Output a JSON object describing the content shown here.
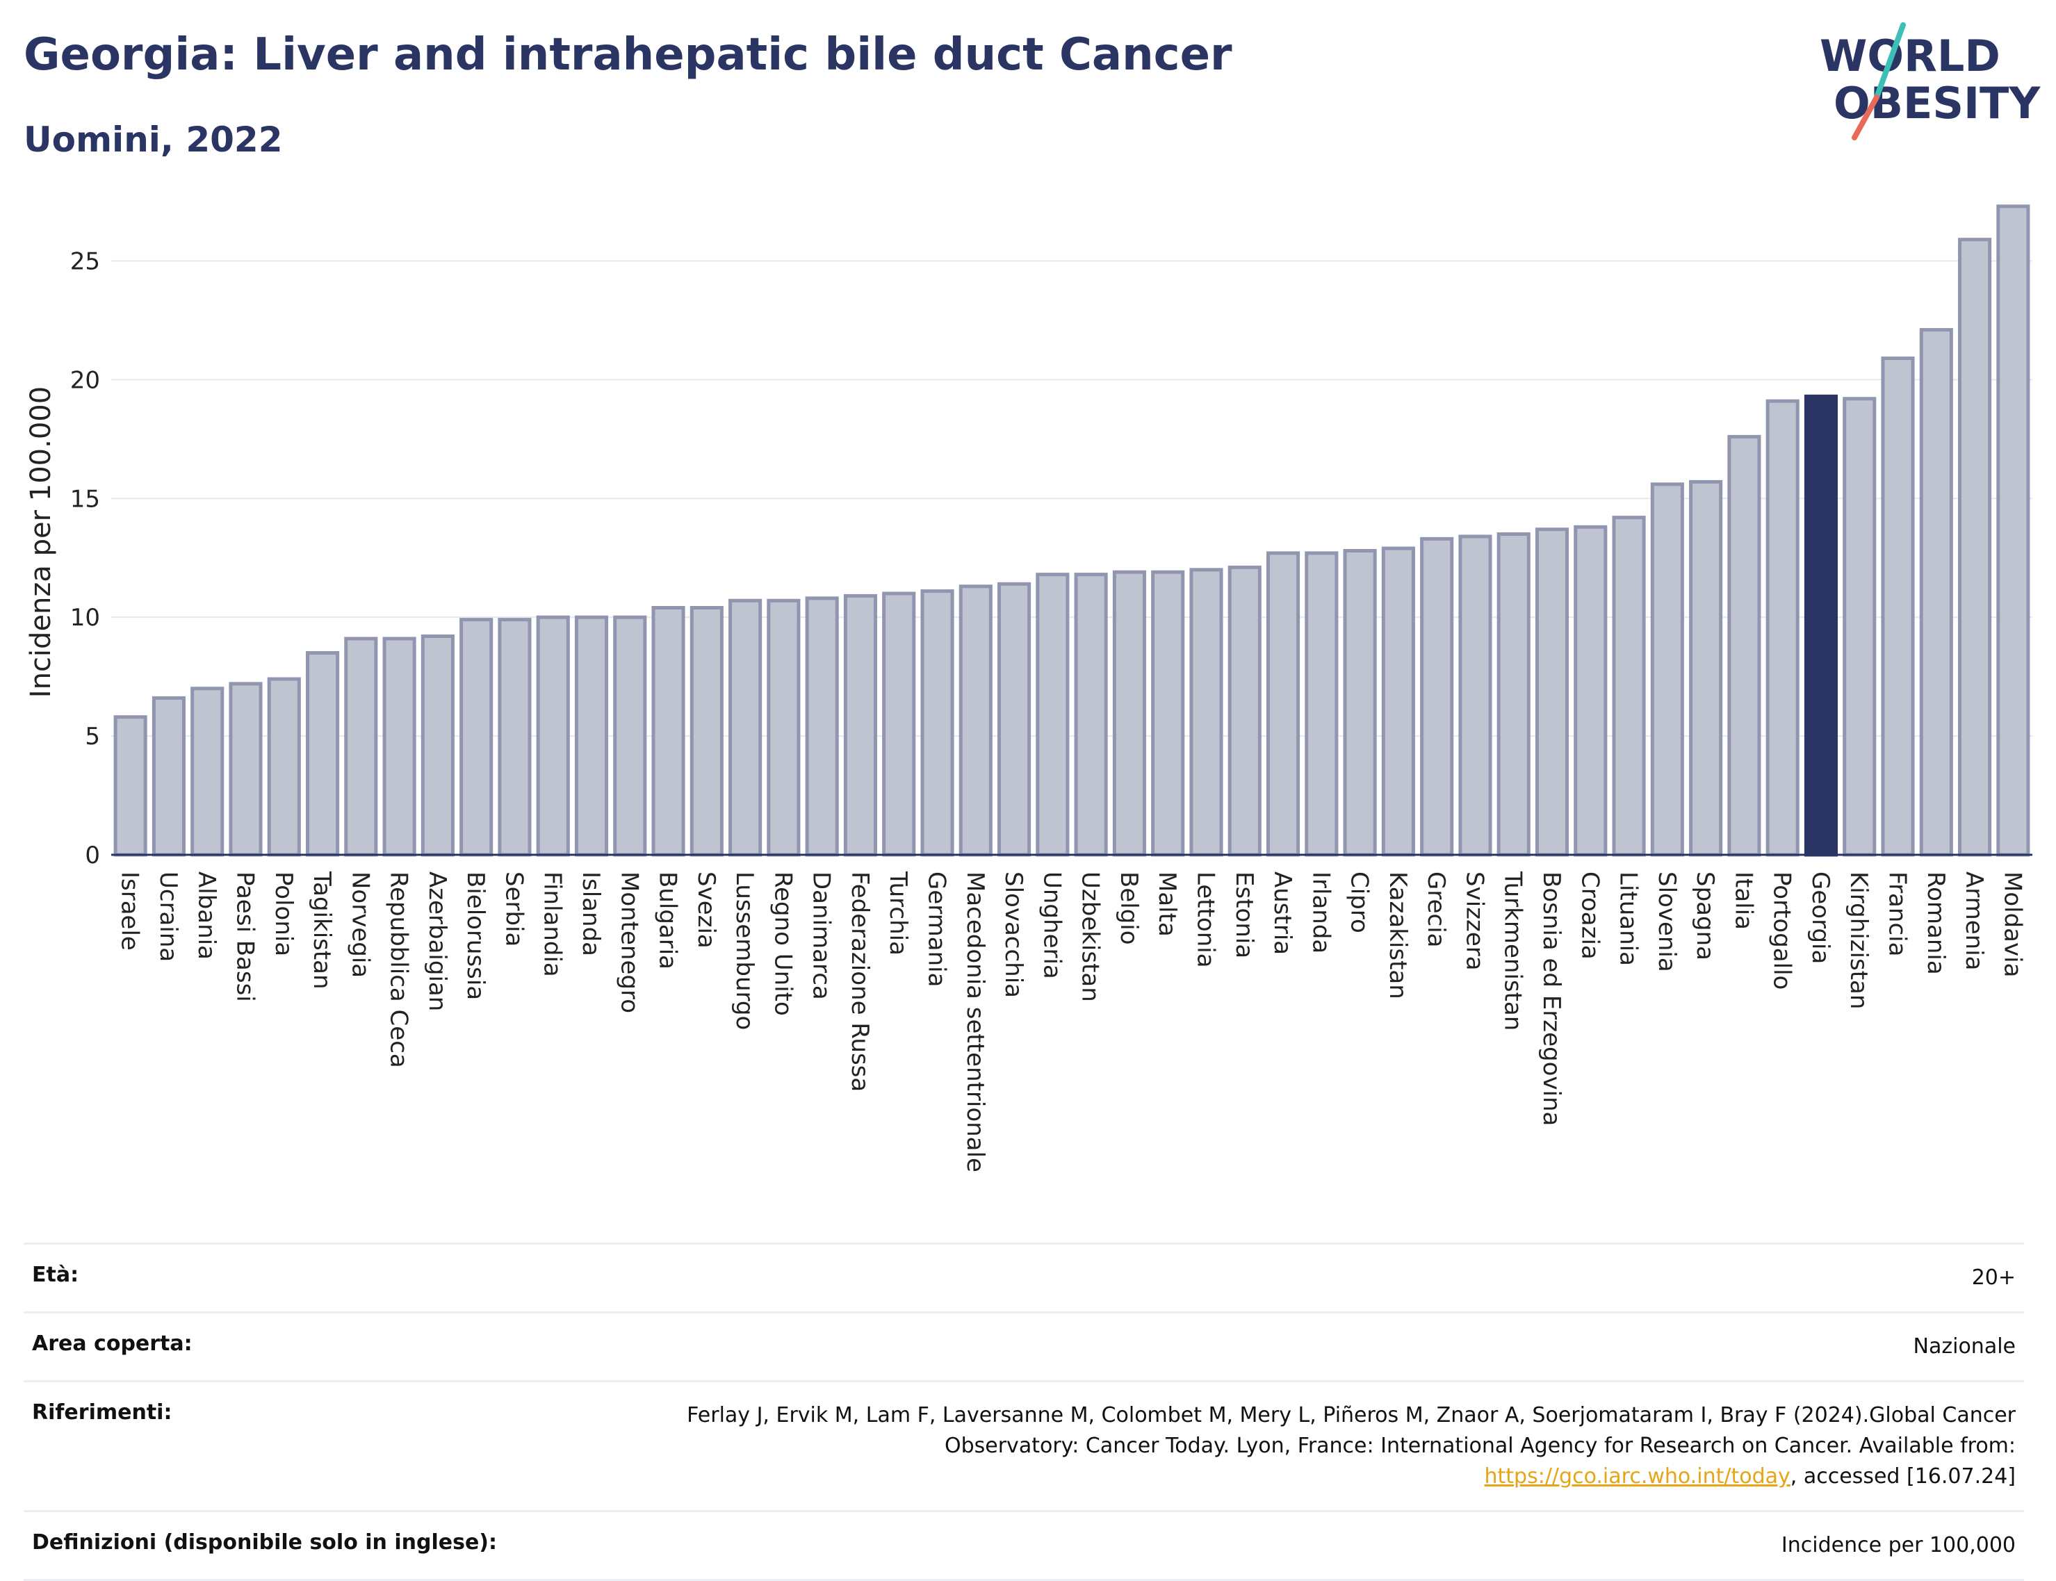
{
  "header": {
    "title": "Georgia: Liver and intrahepatic bile duct Cancer",
    "subtitle": "Uomini, 2022"
  },
  "logo": {
    "line1": "WORLD",
    "line2": "OBESITY",
    "colors": {
      "text": "#2a3563",
      "slash_top": "#3bbfb7",
      "slash_bottom": "#ea6a5a"
    }
  },
  "chart_data": {
    "type": "bar",
    "title": "Georgia: Liver and intrahepatic bile duct Cancer",
    "subtitle": "Uomini, 2022",
    "xlabel": "",
    "ylabel": "Incidenza per 100.000",
    "ylim": [
      0,
      27.5
    ],
    "yticks": [
      0,
      5,
      10,
      15,
      20,
      25
    ],
    "grid": true,
    "highlight": "Georgia",
    "colors": {
      "bar": "#c0c4d1",
      "bar_edge": "#9096b0",
      "highlight": "#2a3563"
    },
    "categories": [
      "Israele",
      "Ucraina",
      "Albania",
      "Paesi Bassi",
      "Polonia",
      "Tagikistan",
      "Norvegia",
      "Repubblica Ceca",
      "Azerbaigian",
      "Bielorussia",
      "Serbia",
      "Finlandia",
      "Islanda",
      "Montenegro",
      "Bulgaria",
      "Svezia",
      "Lussemburgo",
      "Regno Unito",
      "Danimarca",
      "Federazione Russa",
      "Turchia",
      "Germania",
      "Macedonia settentrionale",
      "Slovacchia",
      "Ungheria",
      "Uzbekistan",
      "Belgio",
      "Malta",
      "Lettonia",
      "Estonia",
      "Austria",
      "Irlanda",
      "Cipro",
      "Kazakistan",
      "Grecia",
      "Svizzera",
      "Turkmenistan",
      "Bosnia ed Erzegovina",
      "Croazia",
      "Lituania",
      "Slovenia",
      "Spagna",
      "Italia",
      "Portogallo",
      "Georgia",
      "Kirghizistan",
      "Francia",
      "Romania",
      "Armenia",
      "Moldavia"
    ],
    "values": [
      5.8,
      6.6,
      7.0,
      7.2,
      7.4,
      8.5,
      9.1,
      9.1,
      9.2,
      9.9,
      9.9,
      10.0,
      10.0,
      10.0,
      10.4,
      10.4,
      10.7,
      10.7,
      10.8,
      10.9,
      11.0,
      11.1,
      11.3,
      11.4,
      11.8,
      11.8,
      11.9,
      11.9,
      12.0,
      12.1,
      12.7,
      12.7,
      12.8,
      12.9,
      13.3,
      13.4,
      13.5,
      13.7,
      13.8,
      14.2,
      15.6,
      15.7,
      17.6,
      19.1,
      19.3,
      19.2,
      20.9,
      22.1,
      25.9,
      27.3
    ]
  },
  "info": {
    "age_label": "Età:",
    "age_value": "20+",
    "area_label": "Area coperta:",
    "area_value": "Nazionale",
    "ref_label": "Riferimenti:",
    "ref_text_1": "Ferlay J, Ervik M, Lam F, Laversanne M, Colombet M, Mery L, Piñeros M, Znaor A, Soerjomataram I, Bray F (2024).Global Cancer Observatory: Cancer Today. Lyon, France: International Agency for Research on Cancer. Available from: ",
    "ref_link": "https://gco.iarc.who.int/today",
    "ref_text_2": ", accessed [16.07.24]",
    "def_label": "Definizioni (disponibile solo in inglese):",
    "def_value": "Incidence per 100,000"
  }
}
